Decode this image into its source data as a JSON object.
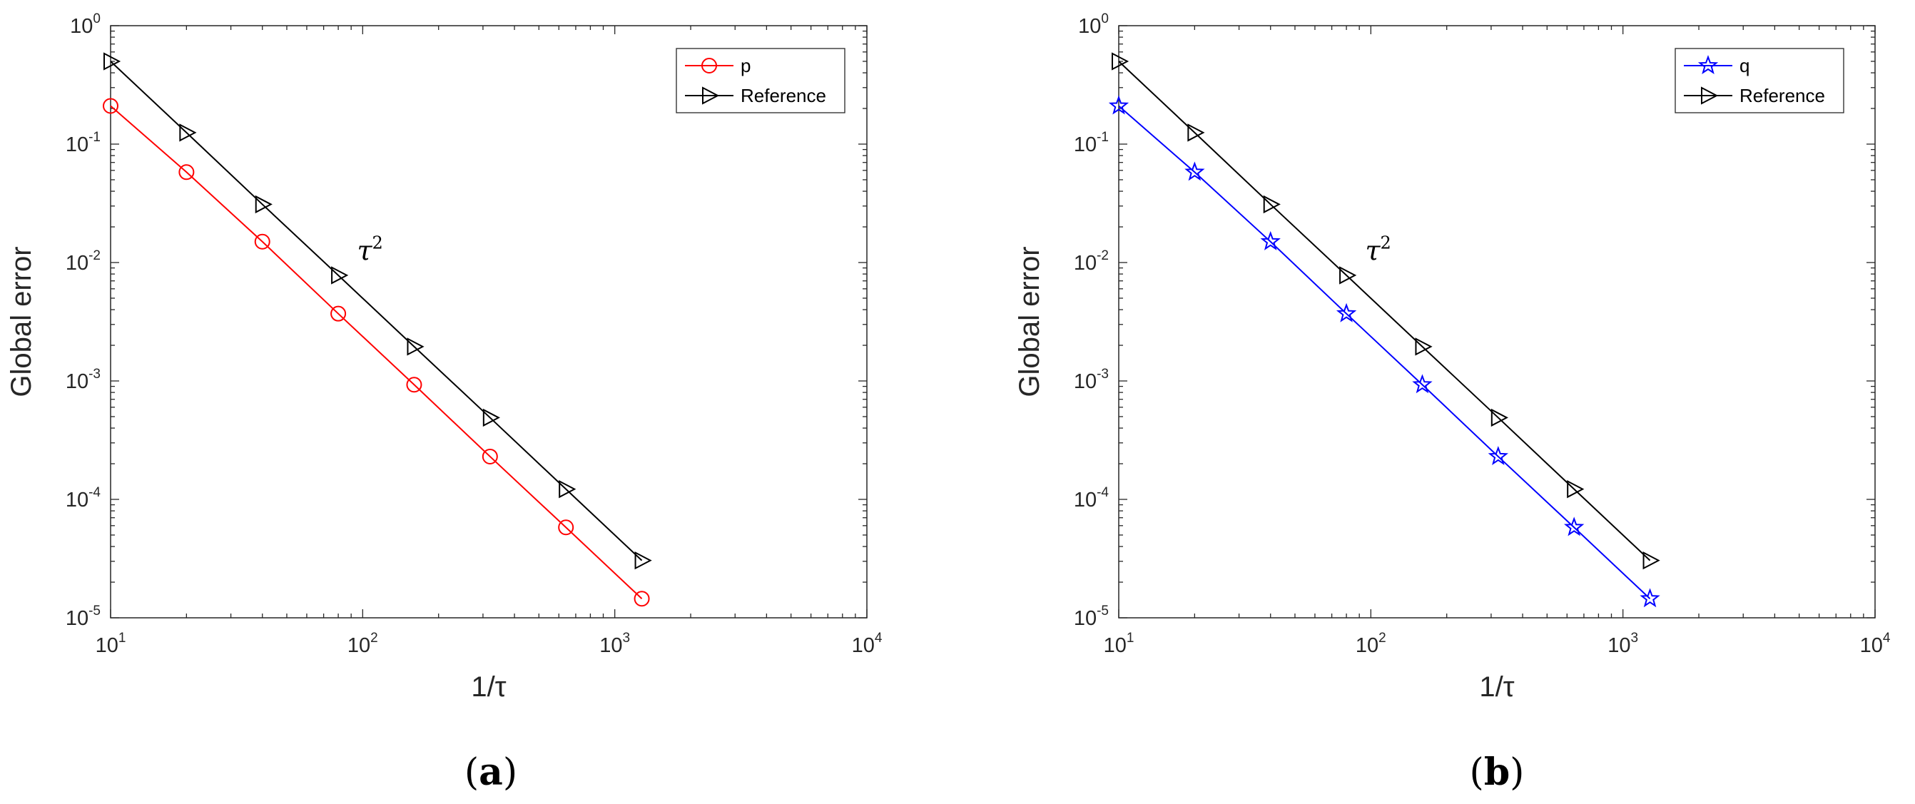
{
  "chart_data": [
    {
      "type": "line",
      "panel_label": "a",
      "xscale": "log",
      "yscale": "log",
      "xlim": [
        10,
        10000
      ],
      "ylim": [
        1e-05,
        1
      ],
      "xticks": [
        10,
        100,
        1000,
        10000
      ],
      "yticks": [
        1e-05,
        0.0001,
        0.001,
        0.01,
        0.1,
        1
      ],
      "xtick_labels": [
        {
          "base": "10",
          "exp": "1"
        },
        {
          "base": "10",
          "exp": "2"
        },
        {
          "base": "10",
          "exp": "3"
        },
        {
          "base": "10",
          "exp": "4"
        }
      ],
      "ytick_labels": [
        {
          "base": "10",
          "exp": "-5"
        },
        {
          "base": "10",
          "exp": "-4"
        },
        {
          "base": "10",
          "exp": "-3"
        },
        {
          "base": "10",
          "exp": "-2"
        },
        {
          "base": "10",
          "exp": "-1"
        },
        {
          "base": "10",
          "exp": "0"
        }
      ],
      "xlabel": "1/τ",
      "ylabel": "Global error",
      "grid": false,
      "legend_position": "top-right",
      "annotation": {
        "text": "τ",
        "exp": "2",
        "x": 95,
        "y": 0.0105
      },
      "series": [
        {
          "name": "p",
          "color": "#ff0000",
          "marker": "circle",
          "x": [
            10,
            20,
            40,
            80,
            160,
            320,
            640,
            1280
          ],
          "y": [
            0.21,
            0.058,
            0.015,
            0.0037,
            0.00093,
            0.00023,
            5.8e-05,
            1.45e-05
          ]
        },
        {
          "name": "Reference",
          "color": "#000000",
          "marker": "triangle-right",
          "x": [
            10,
            20,
            40,
            80,
            160,
            320,
            640,
            1280
          ],
          "y": [
            0.5,
            0.125,
            0.031,
            0.0078,
            0.00195,
            0.00049,
            0.000122,
            3.05e-05
          ]
        }
      ]
    },
    {
      "type": "line",
      "panel_label": "b",
      "xscale": "log",
      "yscale": "log",
      "xlim": [
        10,
        10000
      ],
      "ylim": [
        1e-05,
        1
      ],
      "xticks": [
        10,
        100,
        1000,
        10000
      ],
      "yticks": [
        1e-05,
        0.0001,
        0.001,
        0.01,
        0.1,
        1
      ],
      "xtick_labels": [
        {
          "base": "10",
          "exp": "1"
        },
        {
          "base": "10",
          "exp": "2"
        },
        {
          "base": "10",
          "exp": "3"
        },
        {
          "base": "10",
          "exp": "4"
        }
      ],
      "ytick_labels": [
        {
          "base": "10",
          "exp": "-5"
        },
        {
          "base": "10",
          "exp": "-4"
        },
        {
          "base": "10",
          "exp": "-3"
        },
        {
          "base": "10",
          "exp": "-2"
        },
        {
          "base": "10",
          "exp": "-1"
        },
        {
          "base": "10",
          "exp": "0"
        }
      ],
      "xlabel": "1/τ",
      "ylabel": "Global error",
      "grid": false,
      "legend_position": "top-right",
      "annotation": {
        "text": "τ",
        "exp": "2",
        "x": 95,
        "y": 0.0105
      },
      "series": [
        {
          "name": "q",
          "color": "#0000ff",
          "marker": "star",
          "x": [
            10,
            20,
            40,
            80,
            160,
            320,
            640,
            1280
          ],
          "y": [
            0.21,
            0.058,
            0.015,
            0.0037,
            0.00093,
            0.00023,
            5.8e-05,
            1.45e-05
          ]
        },
        {
          "name": "Reference",
          "color": "#000000",
          "marker": "triangle-right",
          "x": [
            10,
            20,
            40,
            80,
            160,
            320,
            640,
            1280
          ],
          "y": [
            0.5,
            0.125,
            0.031,
            0.0078,
            0.00195,
            0.00049,
            0.000122,
            3.05e-05
          ]
        }
      ]
    }
  ]
}
